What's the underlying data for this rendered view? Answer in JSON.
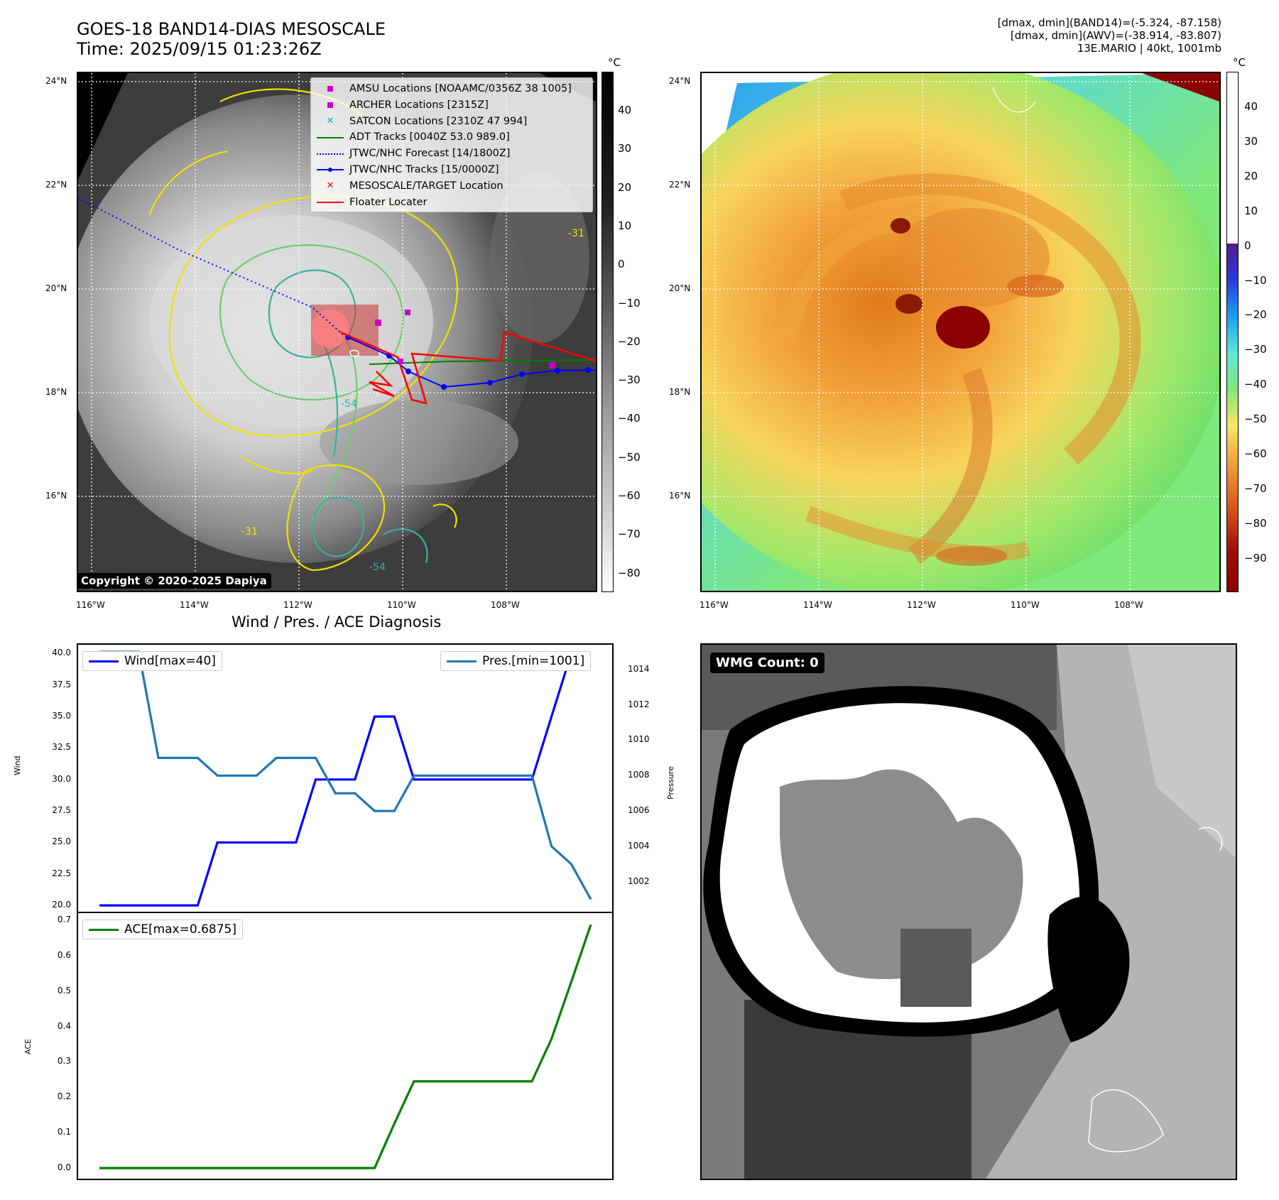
{
  "header": {
    "title_line1": "GOES-18 BAND14-DIAS MESOSCALE",
    "title_line2": "Time: 2025/09/15 01:23:26Z",
    "info_line1": "[dmax, dmin](BAND14)=(-5.324, -87.158)",
    "info_line2": "[dmax, dmin](AWV)=(-38.914, -83.807)",
    "info_line3": "13E.MARIO | 40kt, 1001mb"
  },
  "map": {
    "lat_labels": [
      "24°N",
      "22°N",
      "20°N",
      "18°N",
      "16°N"
    ],
    "lon_labels": [
      "116°W",
      "114°W",
      "112°W",
      "110°W",
      "108°W"
    ],
    "copyright": "Copyright © 2020-2025 Dapiya",
    "contour_labels": [
      "-31",
      "-54",
      "-54",
      "-31"
    ],
    "legend": [
      {
        "label": "AMSU Locations [NOAAMC/0356Z 38 1005]",
        "color": "#c800c8",
        "symbol": "square"
      },
      {
        "label": "ARCHER Locations [2315Z]",
        "color": "#c800c8",
        "symbol": "square"
      },
      {
        "label": "SATCON Locations [2310Z 47 994]",
        "color": "#00b4b4",
        "symbol": "x"
      },
      {
        "label": "ADT Tracks [0040Z 53.0 989.0]",
        "color": "#008000",
        "symbol": "line"
      },
      {
        "label": "JTWC/NHC Forecast [14/1800Z]",
        "color": "#0000ff",
        "symbol": "dotted"
      },
      {
        "label": "JTWC/NHC Tracks [15/0000Z]",
        "color": "#0000ff",
        "symbol": "line-dot"
      },
      {
        "label": "MESOSCALE/TARGET Location",
        "color": "#ff0000",
        "symbol": "x"
      },
      {
        "label": "Floater Locater",
        "color": "#ff0000",
        "symbol": "line"
      }
    ]
  },
  "colorbar1": {
    "unit": "°C",
    "ticks": [
      "40",
      "30",
      "20",
      "10",
      "0",
      "−10",
      "−20",
      "−30",
      "−40",
      "−50",
      "−60",
      "−70",
      "−80"
    ]
  },
  "colorbar2": {
    "unit": "°C",
    "ticks": [
      "40",
      "30",
      "20",
      "10",
      "0",
      "−10",
      "−20",
      "−30",
      "−40",
      "−50",
      "−60",
      "−70",
      "−80",
      "−90"
    ]
  },
  "diagnosis": {
    "title": "Wind / Pres. / ACE Diagnosis",
    "wind_legend": "Wind[max=40]",
    "pres_legend": "Pres.[min=1001]",
    "ace_legend": "ACE[max=0.6875]",
    "wind_axis_label": "Wind",
    "pres_axis_label": "Pressure",
    "ace_axis_label": "ACE",
    "wind_ticks": [
      "40.0",
      "37.5",
      "35.0",
      "32.5",
      "30.0",
      "27.5",
      "25.0",
      "22.5",
      "20.0"
    ],
    "pres_ticks": [
      "1014",
      "1012",
      "1010",
      "1008",
      "1006",
      "1004",
      "1002"
    ],
    "ace_ticks": [
      "0.7",
      "0.6",
      "0.5",
      "0.4",
      "0.3",
      "0.2",
      "0.1",
      "0.0"
    ]
  },
  "wmg": {
    "label": "WMG Count: 0"
  },
  "chart_data": [
    {
      "type": "line",
      "name": "wind",
      "x": [
        0,
        1,
        2,
        3,
        4,
        5,
        6,
        7,
        8,
        9,
        10,
        11,
        12,
        13,
        14,
        15,
        16,
        17,
        18,
        19,
        20,
        21,
        22,
        23,
        24,
        25
      ],
      "series": [
        {
          "name": "Wind[max=40]",
          "values": [
            20,
            20,
            20,
            20,
            20,
            20,
            25,
            25,
            25,
            25,
            25,
            30,
            30,
            30,
            35,
            35,
            30,
            30,
            30,
            30,
            30,
            30,
            30,
            35,
            40,
            40
          ]
        }
      ],
      "ylim": [
        19.5,
        40.7
      ],
      "color": "#0000ff"
    },
    {
      "type": "line",
      "name": "pressure",
      "x": [
        0,
        1,
        2,
        3,
        4,
        5,
        6,
        7,
        8,
        9,
        10,
        11,
        12,
        13,
        14,
        15,
        16,
        17,
        18,
        19,
        20,
        21,
        22,
        23,
        24,
        25
      ],
      "series": [
        {
          "name": "Pres.[min=1001]",
          "values": [
            1015,
            1015,
            1015,
            1009,
            1009,
            1009,
            1008,
            1008,
            1008,
            1009,
            1009,
            1009,
            1007,
            1007,
            1006,
            1006,
            1008,
            1008,
            1008,
            1008,
            1008,
            1008,
            1008,
            1004,
            1003,
            1001
          ]
        }
      ],
      "ylim": [
        1000.3,
        1015.4
      ],
      "color": "#1f77b4"
    },
    {
      "type": "line",
      "name": "ace",
      "x": [
        0,
        1,
        2,
        3,
        4,
        5,
        6,
        7,
        8,
        9,
        10,
        11,
        12,
        13,
        14,
        15,
        16,
        17,
        18,
        19,
        20,
        21,
        22,
        23,
        24,
        25
      ],
      "series": [
        {
          "name": "ACE[max=0.6875]",
          "values": [
            0,
            0,
            0,
            0,
            0,
            0,
            0,
            0,
            0,
            0,
            0,
            0,
            0,
            0,
            0.0,
            0.125,
            0.245,
            0.245,
            0.245,
            0.245,
            0.245,
            0.245,
            0.245,
            0.365,
            0.525,
            0.6875
          ]
        }
      ],
      "ylim": [
        -0.03,
        0.72
      ],
      "color": "#008000"
    }
  ]
}
